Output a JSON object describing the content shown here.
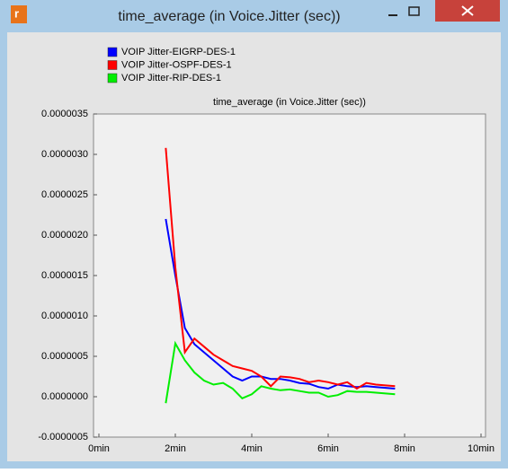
{
  "window": {
    "title": "time_average (in Voice.Jitter (sec))"
  },
  "chart_data": {
    "type": "line",
    "title": "time_average (in Voice.Jitter (sec))",
    "x": [
      1.75,
      2.0,
      2.25,
      2.5,
      2.75,
      3.0,
      3.25,
      3.5,
      3.75,
      4.0,
      4.25,
      4.5,
      4.75,
      5.0,
      5.25,
      5.5,
      5.75,
      6.0,
      6.25,
      6.5,
      6.75,
      7.0,
      7.25,
      7.5,
      7.75
    ],
    "series": [
      {
        "name": "VOIP Jitter-EIGRP-DES-1",
        "color": "#0000ff",
        "values": [
          2.2e-06,
          1.5e-06,
          8.5e-07,
          6.5e-07,
          5.5e-07,
          4.5e-07,
          3.5e-07,
          2.5e-07,
          2e-07,
          2.5e-07,
          2.5e-07,
          2.2e-07,
          2.2e-07,
          2e-07,
          1.7e-07,
          1.6e-07,
          1.2e-07,
          1e-07,
          1.5e-07,
          1.3e-07,
          1.2e-07,
          1.3e-07,
          1.2e-07,
          1.1e-07,
          1e-07
        ]
      },
      {
        "name": "VOIP Jitter-OSPF-DES-1",
        "color": "#ff0000",
        "values": [
          3.08e-06,
          1.6e-06,
          5.5e-07,
          7.2e-07,
          6.2e-07,
          5.2e-07,
          4.5e-07,
          3.8e-07,
          3.5e-07,
          3.2e-07,
          2.5e-07,
          1.3e-07,
          2.5e-07,
          2.4e-07,
          2.2e-07,
          1.8e-07,
          2e-07,
          1.8e-07,
          1.5e-07,
          1.8e-07,
          1e-07,
          1.7e-07,
          1.5e-07,
          1.4e-07,
          1.3e-07
        ]
      },
      {
        "name": "VOIP Jitter-RIP-DES-1",
        "color": "#00ee00",
        "values": [
          -8e-08,
          6.6e-07,
          4.5e-07,
          3e-07,
          2e-07,
          1.5e-07,
          1.7e-07,
          1e-07,
          -2e-08,
          3e-08,
          1.3e-07,
          1e-07,
          8e-08,
          9e-08,
          7e-08,
          5e-08,
          5e-08,
          0.0,
          2e-08,
          7e-08,
          6e-08,
          6e-08,
          5e-08,
          4e-08,
          3e-08
        ]
      }
    ],
    "xlim": [
      0,
      10
    ],
    "xticks": [
      {
        "value": 0,
        "label": "0min"
      },
      {
        "value": 2,
        "label": "2min"
      },
      {
        "value": 4,
        "label": "4min"
      },
      {
        "value": 6,
        "label": "6min"
      },
      {
        "value": 8,
        "label": "8min"
      },
      {
        "value": 10,
        "label": "10min"
      }
    ],
    "ylim": [
      -5e-07,
      3.5e-06
    ],
    "yticks": [
      {
        "value": -5e-07,
        "label": "-0.0000005"
      },
      {
        "value": 0,
        "label": "0.0000000"
      },
      {
        "value": 5e-07,
        "label": "0.0000005"
      },
      {
        "value": 1e-06,
        "label": "0.0000010"
      },
      {
        "value": 1.5e-06,
        "label": "0.0000015"
      },
      {
        "value": 2e-06,
        "label": "0.0000020"
      },
      {
        "value": 2.5e-06,
        "label": "0.0000025"
      },
      {
        "value": 3e-06,
        "label": "0.0000030"
      },
      {
        "value": 3.5e-06,
        "label": "0.0000035"
      }
    ],
    "grid": false
  }
}
